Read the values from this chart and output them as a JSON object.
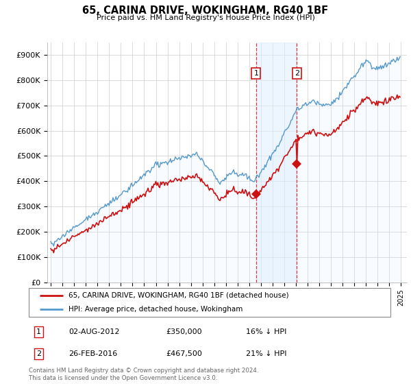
{
  "title": "65, CARINA DRIVE, WOKINGHAM, RG40 1BF",
  "subtitle": "Price paid vs. HM Land Registry's House Price Index (HPI)",
  "ylim": [
    0,
    950000
  ],
  "yticks": [
    0,
    100000,
    200000,
    300000,
    400000,
    500000,
    600000,
    700000,
    800000,
    900000
  ],
  "ytick_labels": [
    "£0",
    "£100K",
    "£200K",
    "£300K",
    "£400K",
    "£500K",
    "£600K",
    "£700K",
    "£800K",
    "£900K"
  ],
  "xlim_start": 1994.7,
  "xlim_end": 2025.5,
  "grid_color": "#cccccc",
  "hpi_color": "#5599cc",
  "hpi_fill_color": "#ddeeff",
  "price_color": "#cc1111",
  "transaction1_year": 2012.58,
  "transaction1_price": 350000,
  "transaction2_year": 2016.12,
  "transaction2_price": 467500,
  "legend_property": "65, CARINA DRIVE, WOKINGHAM, RG40 1BF (detached house)",
  "legend_hpi": "HPI: Average price, detached house, Wokingham",
  "annotation1_date": "02-AUG-2012",
  "annotation1_price": "£350,000",
  "annotation1_pct": "16% ↓ HPI",
  "annotation2_date": "26-FEB-2016",
  "annotation2_price": "£467,500",
  "annotation2_pct": "21% ↓ HPI",
  "footer": "Contains HM Land Registry data © Crown copyright and database right 2024.\nThis data is licensed under the Open Government Licence v3.0."
}
